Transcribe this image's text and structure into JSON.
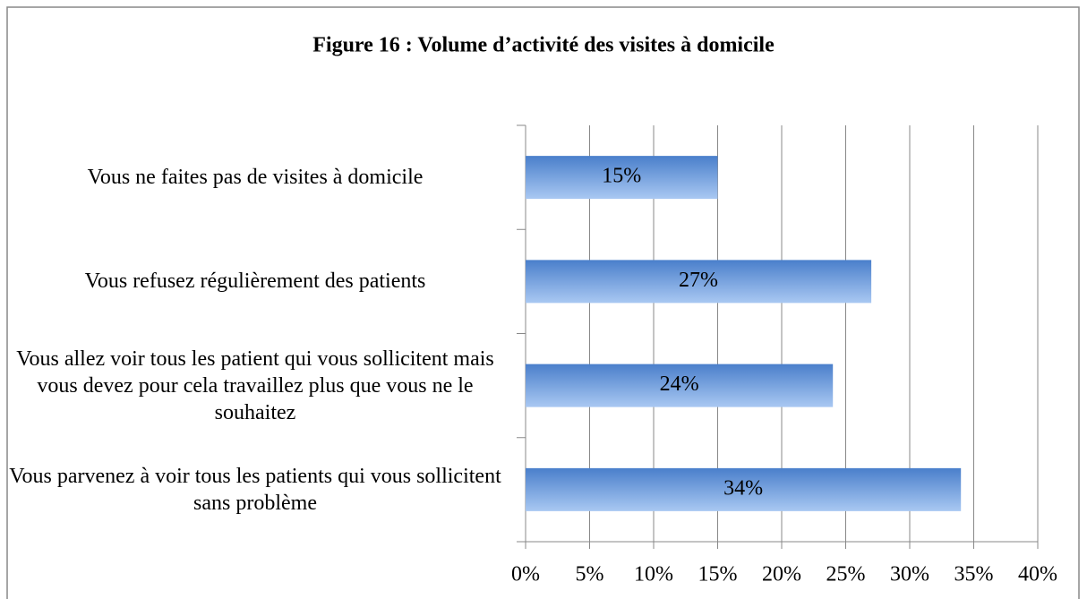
{
  "chart_data": {
    "type": "barh",
    "title": "Figure 16 : Volume d’activité des visites à domicile",
    "categories": [
      "Vous ne faites pas de visites à domicile",
      "Vous refusez régulièrement des patients",
      "Vous allez voir tous les patient qui vous sollicitent mais vous devez pour cela travaillez plus que vous ne le souhaitez",
      "Vous parvenez à voir tous les patients qui vous sollicitent sans problème"
    ],
    "values": [
      15,
      27,
      24,
      34
    ],
    "value_labels": [
      "15%",
      "27%",
      "24%",
      "34%"
    ],
    "color": "#4a7fcb",
    "xlim": [
      0,
      40
    ],
    "xticks": [
      {
        "value": 0,
        "label": "0%"
      },
      {
        "value": 5,
        "label": "5%"
      },
      {
        "value": 10,
        "label": "10%"
      },
      {
        "value": 15,
        "label": "15%"
      },
      {
        "value": 20,
        "label": "20%"
      },
      {
        "value": 25,
        "label": "25%"
      },
      {
        "value": 30,
        "label": "30%"
      },
      {
        "value": 35,
        "label": "35%"
      },
      {
        "value": 40,
        "label": "40%"
      }
    ],
    "grid": true
  }
}
